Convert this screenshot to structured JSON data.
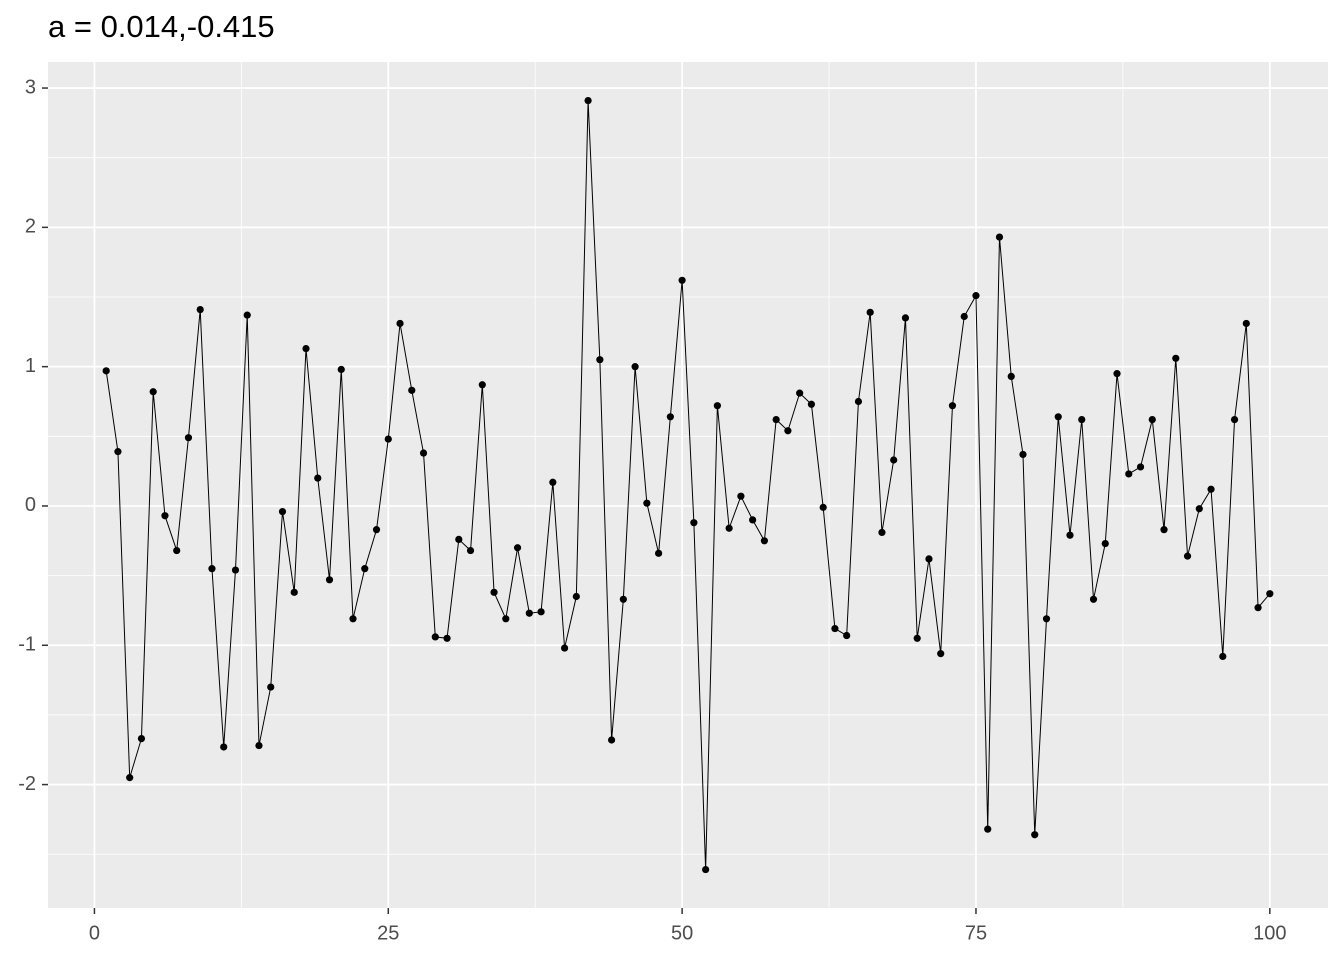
{
  "chart_data": {
    "type": "line",
    "title": "a = 0.014,-0.415",
    "x": [
      1,
      2,
      3,
      4,
      5,
      6,
      7,
      8,
      9,
      10,
      11,
      12,
      13,
      14,
      15,
      16,
      17,
      18,
      19,
      20,
      21,
      22,
      23,
      24,
      25,
      26,
      27,
      28,
      29,
      30,
      31,
      32,
      33,
      34,
      35,
      36,
      37,
      38,
      39,
      40,
      41,
      42,
      43,
      44,
      45,
      46,
      47,
      48,
      49,
      50,
      51,
      52,
      53,
      54,
      55,
      56,
      57,
      58,
      59,
      60,
      61,
      62,
      63,
      64,
      65,
      66,
      67,
      68,
      69,
      70,
      71,
      72,
      73,
      74,
      75,
      76,
      77,
      78,
      79,
      80,
      81,
      82,
      83,
      84,
      85,
      86,
      87,
      88,
      89,
      90,
      91,
      92,
      93,
      94,
      95,
      96,
      97,
      98,
      99,
      100
    ],
    "series": [
      {
        "color": "#000000",
        "values": [
          0.97,
          0.39,
          -1.95,
          -1.67,
          0.82,
          -0.07,
          -0.32,
          0.49,
          1.41,
          -0.45,
          -1.73,
          -0.46,
          1.37,
          -1.72,
          -1.3,
          -0.04,
          -0.62,
          1.13,
          0.2,
          -0.53,
          0.98,
          -0.81,
          -0.45,
          -0.17,
          0.48,
          1.31,
          0.83,
          0.38,
          -0.94,
          -0.95,
          -0.24,
          -0.32,
          0.87,
          -0.62,
          -0.81,
          -0.3,
          -0.77,
          -0.76,
          0.17,
          -1.02,
          -0.65,
          2.91,
          1.05,
          -1.68,
          -0.67,
          1.0,
          0.02,
          -0.34,
          0.64,
          1.62,
          -0.12,
          -2.61,
          0.72,
          -0.16,
          0.07,
          -0.1,
          -0.25,
          0.62,
          0.54,
          0.81,
          0.73,
          -0.01,
          -0.88,
          -0.93,
          0.75,
          1.39,
          -0.19,
          0.33,
          1.35,
          -0.95,
          -0.38,
          -1.06,
          0.72,
          1.36,
          1.51,
          -2.32,
          1.93,
          0.93,
          0.37,
          -2.36,
          -0.81,
          0.64,
          -0.21,
          0.62,
          -0.67,
          -0.27,
          0.95,
          0.23,
          0.28,
          0.62,
          -0.17,
          1.06,
          -0.36,
          -0.02,
          0.12,
          -1.08,
          0.62,
          1.31,
          -0.73,
          -0.63
        ]
      }
    ],
    "xlim": [
      -3.95,
      104.95
    ],
    "ylim": [
      -2.886,
      3.187
    ],
    "xticks": [
      0,
      25,
      50,
      75,
      100
    ],
    "yticks": [
      -2,
      -1,
      0,
      1,
      2,
      3
    ],
    "grid": true,
    "points": true
  }
}
